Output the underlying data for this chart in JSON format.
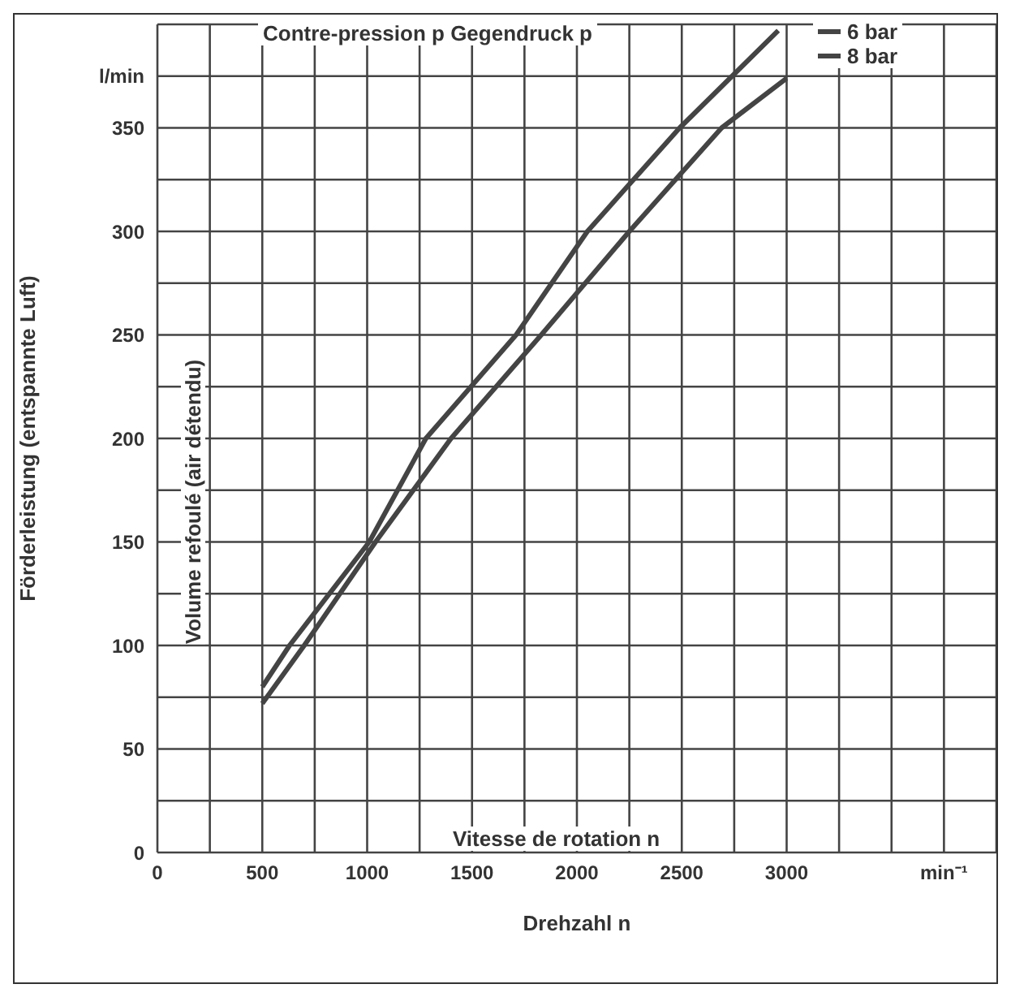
{
  "chart_data": {
    "type": "line",
    "xlabel": "Drehzahl n",
    "ylabel": "Förderleistung (entspannte Luft)",
    "legend_title": "Contre-pression p  Gegendruck p",
    "annotations": [
      "Vitesse de rotation n",
      "Volume refoulé (air détendu)"
    ],
    "xlim": [
      0,
      4000
    ],
    "ylim": [
      0,
      400
    ],
    "xticks": [
      0,
      {
        "value": 250,
        "label": null
      },
      500,
      {
        "value": 750,
        "label": null
      },
      1000,
      {
        "value": 1250,
        "label": null
      },
      1500,
      {
        "value": 1750,
        "label": null
      },
      2000,
      {
        "value": 2250,
        "label": null
      },
      2500,
      {
        "value": 2750,
        "label": null
      },
      3000,
      {
        "value": 3250,
        "label": null
      },
      {
        "value": 3500,
        "label": null
      },
      {
        "value": 3750,
        "label": "min⁻¹"
      }
    ],
    "yticks": [
      0,
      {
        "value": 25,
        "label": null
      },
      50,
      {
        "value": 75,
        "label": null
      },
      100,
      {
        "value": 125,
        "label": null
      },
      150,
      {
        "value": 175,
        "label": null
      },
      200,
      {
        "value": 225,
        "label": null
      },
      250,
      {
        "value": 275,
        "label": null
      },
      300,
      {
        "value": 325,
        "label": null
      },
      350,
      {
        "value": 375,
        "label": "l/min"
      }
    ],
    "grid": true,
    "legend": "top right",
    "marker": "none",
    "line_style": "solid",
    "series": [
      {
        "name": "6 bar",
        "color": "#444444",
        "x": [
          500,
          630,
          1010,
          1280,
          1710,
          2050,
          2490,
          2960
        ],
        "values": [
          80,
          100,
          150,
          200,
          250,
          300,
          350,
          397
        ]
      },
      {
        "name": "8 bar",
        "color": "#444444",
        "x": [
          500,
          700,
          1040,
          1400,
          1830,
          2250,
          2690,
          3000
        ],
        "values": [
          72,
          100,
          150,
          200,
          250,
          300,
          350,
          374
        ]
      }
    ]
  }
}
